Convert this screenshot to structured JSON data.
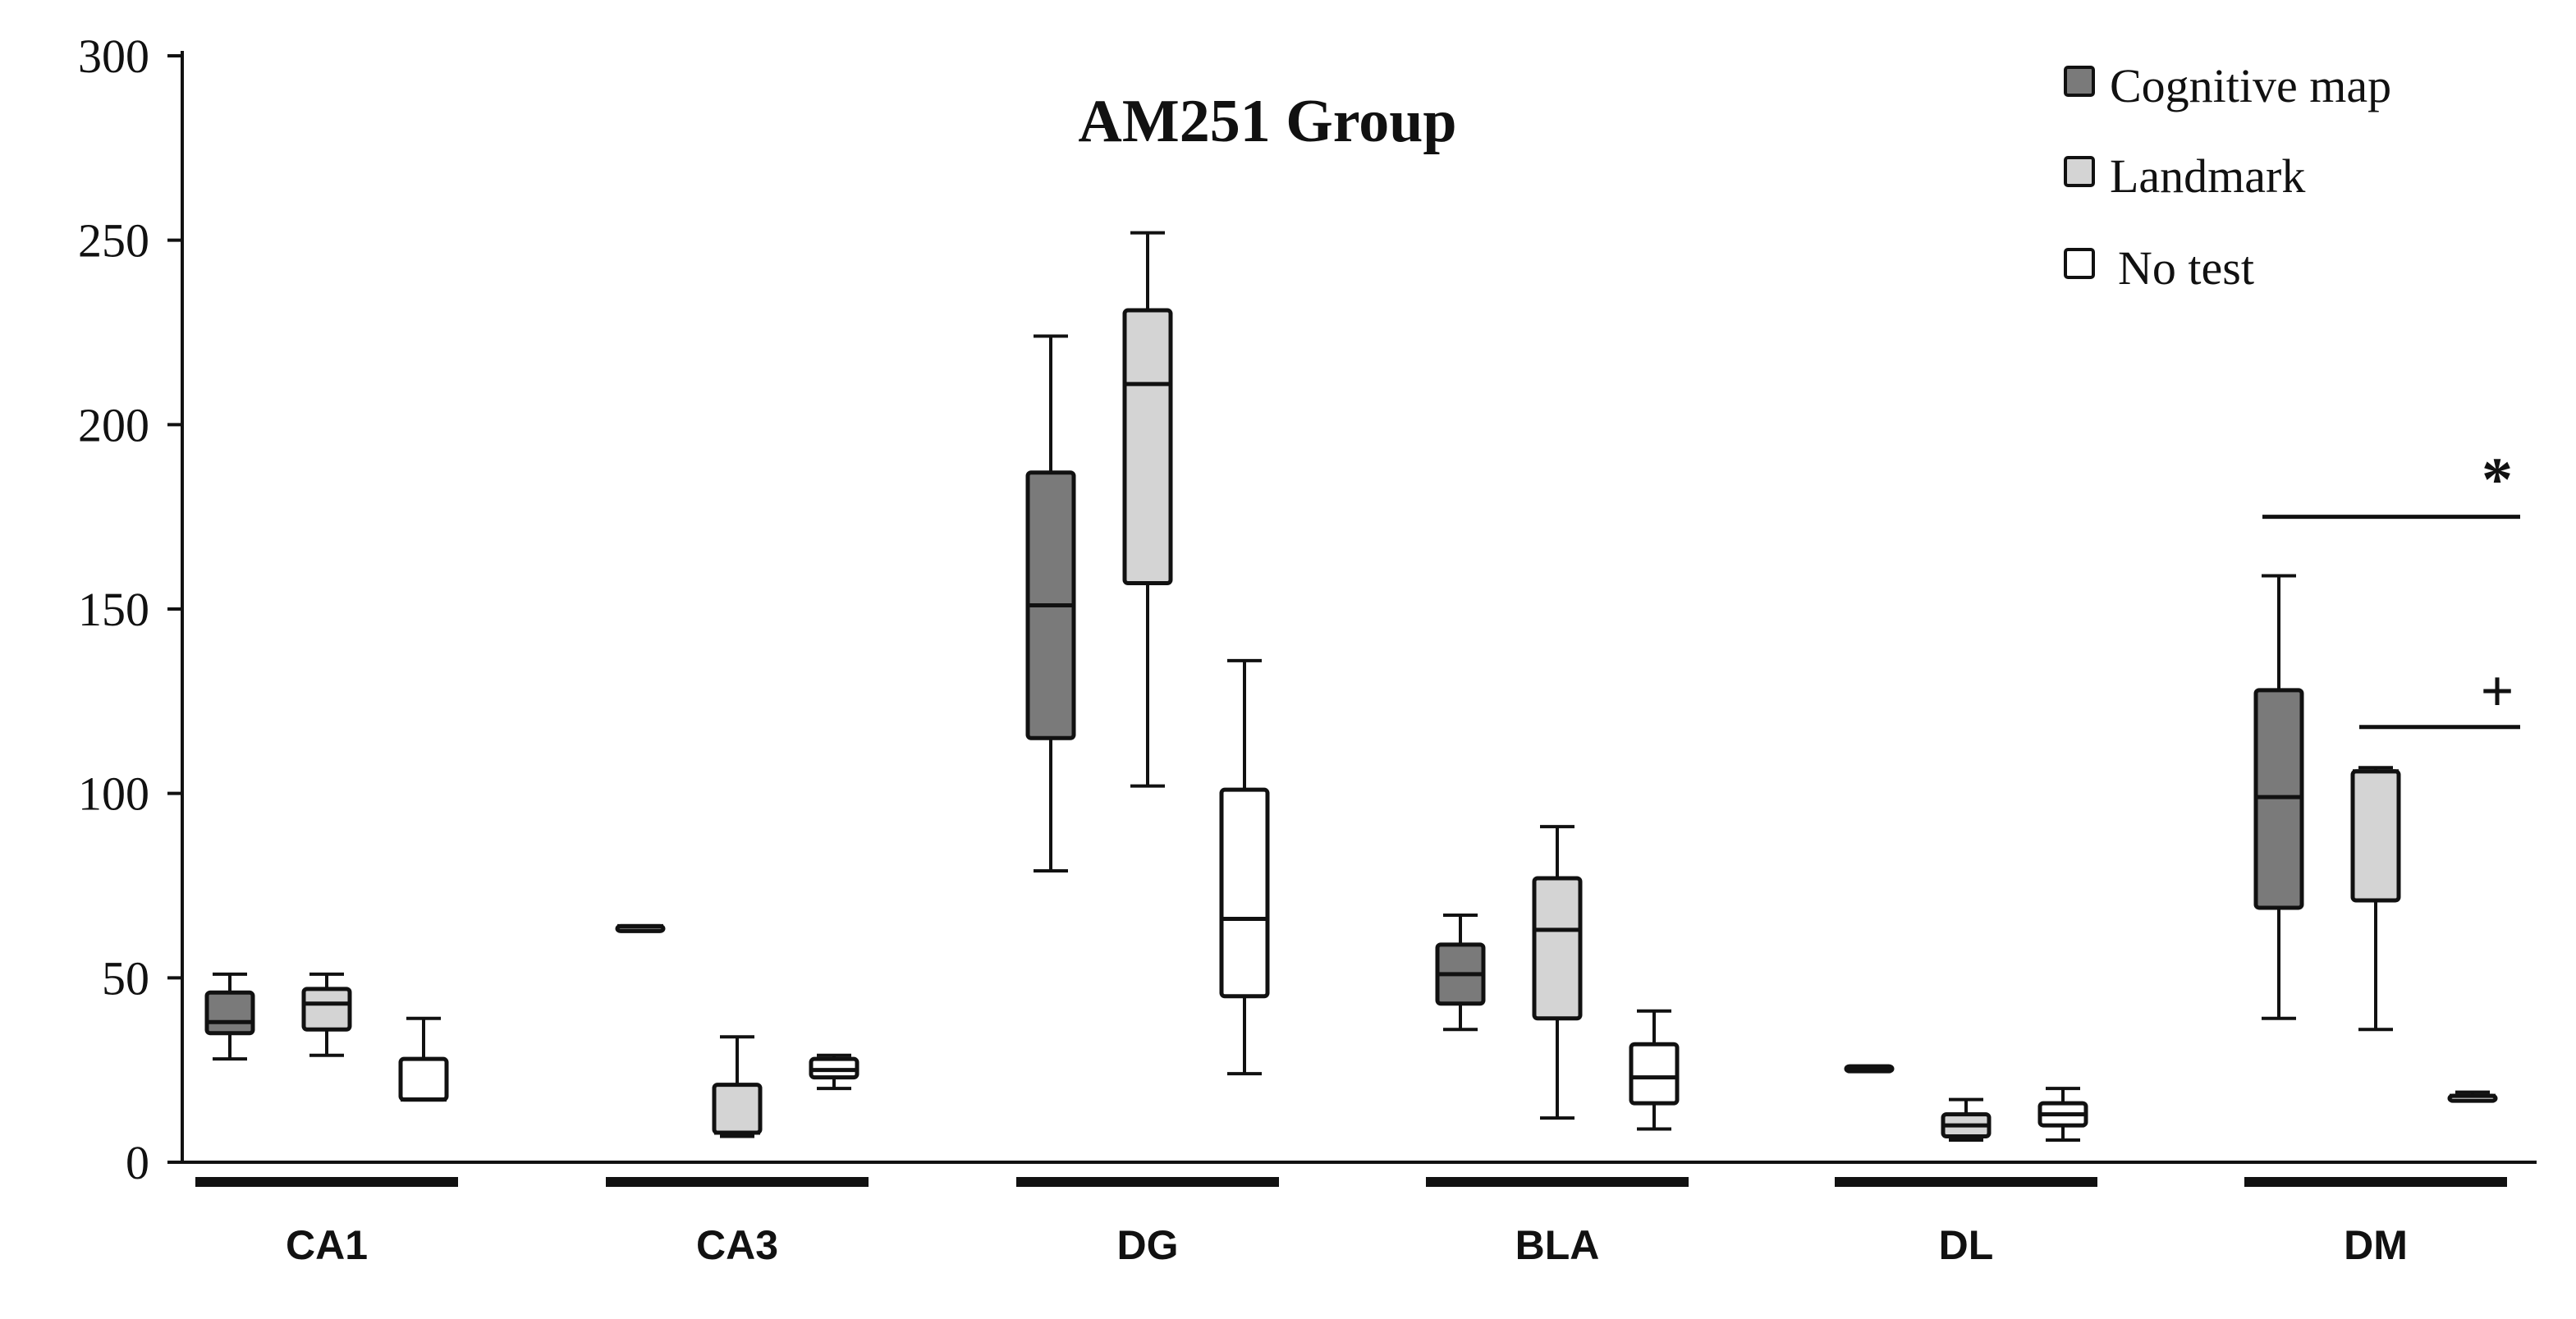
{
  "chart_data": {
    "type": "boxplot",
    "title": "AM251 Group",
    "xlabel": "",
    "ylabel": "",
    "ylim": [
      0,
      300
    ],
    "yticks": [
      0,
      50,
      100,
      150,
      200,
      250,
      300
    ],
    "ytick_labels": [
      "0",
      "50",
      "100",
      "150",
      "200",
      "250",
      "300"
    ],
    "grid": false,
    "legend_position": "top-right",
    "categories": [
      "CA1",
      "CA3",
      "DG",
      "BLA",
      "DL",
      "DM"
    ],
    "series": [
      {
        "name": "Cognitive map",
        "color": "#7a7a7a",
        "boxes": [
          {
            "category": "CA1",
            "min": 28,
            "q1": 35,
            "median": 38,
            "q3": 46,
            "max": 51
          },
          {
            "category": "CA3",
            "min": 64,
            "q1": 64,
            "median": 64,
            "q3": 64,
            "max": 64
          },
          {
            "category": "DG",
            "min": 79,
            "q1": 115,
            "median": 151,
            "q3": 187,
            "max": 224
          },
          {
            "category": "BLA",
            "min": 36,
            "q1": 43,
            "median": 51,
            "q3": 59,
            "max": 67
          },
          {
            "category": "DL",
            "min": 25,
            "q1": 25,
            "median": 25,
            "q3": 26,
            "max": 26
          },
          {
            "category": "DM",
            "min": 39,
            "q1": 69,
            "median": 99,
            "q3": 128,
            "max": 159
          }
        ]
      },
      {
        "name": "Landmark",
        "color": "#d4d4d4",
        "boxes": [
          {
            "category": "CA1",
            "min": 29,
            "q1": 36,
            "median": 43,
            "q3": 47,
            "max": 51
          },
          {
            "category": "CA3",
            "min": 7,
            "q1": 8,
            "median": 8,
            "q3": 21,
            "max": 34
          },
          {
            "category": "DG",
            "min": 102,
            "q1": 157,
            "median": 211,
            "q3": 231,
            "max": 252
          },
          {
            "category": "BLA",
            "min": 12,
            "q1": 39,
            "median": 63,
            "q3": 77,
            "max": 91
          },
          {
            "category": "DL",
            "min": 6,
            "q1": 7,
            "median": 10,
            "q3": 13,
            "max": 17
          },
          {
            "category": "DM",
            "min": 36,
            "q1": 71,
            "median": 106,
            "q3": 106,
            "max": 107
          }
        ]
      },
      {
        "name": "No test",
        "color": "#ffffff",
        "boxes": [
          {
            "category": "CA1",
            "min": 17,
            "q1": 17,
            "median": 17,
            "q3": 28,
            "max": 39
          },
          {
            "category": "CA3",
            "min": 20,
            "q1": 23,
            "median": 25,
            "q3": 28,
            "max": 29
          },
          {
            "category": "DG",
            "min": 24,
            "q1": 45,
            "median": 66,
            "q3": 101,
            "max": 136
          },
          {
            "category": "BLA",
            "min": 9,
            "q1": 16,
            "median": 23,
            "q3": 32,
            "max": 41
          },
          {
            "category": "DL",
            "min": 6,
            "q1": 10,
            "median": 13,
            "q3": 16,
            "max": 20
          },
          {
            "category": "DM",
            "min": 18,
            "q1": 18,
            "median": 18,
            "q3": 18,
            "max": 19
          }
        ]
      }
    ],
    "annotations": [
      {
        "text": "*",
        "category": "DM",
        "from_series": "Cognitive map",
        "to_series": "No test",
        "y": 175
      },
      {
        "text": "+",
        "category": "DM",
        "from_series": "Landmark",
        "to_series": "No test",
        "y": 118
      }
    ]
  }
}
